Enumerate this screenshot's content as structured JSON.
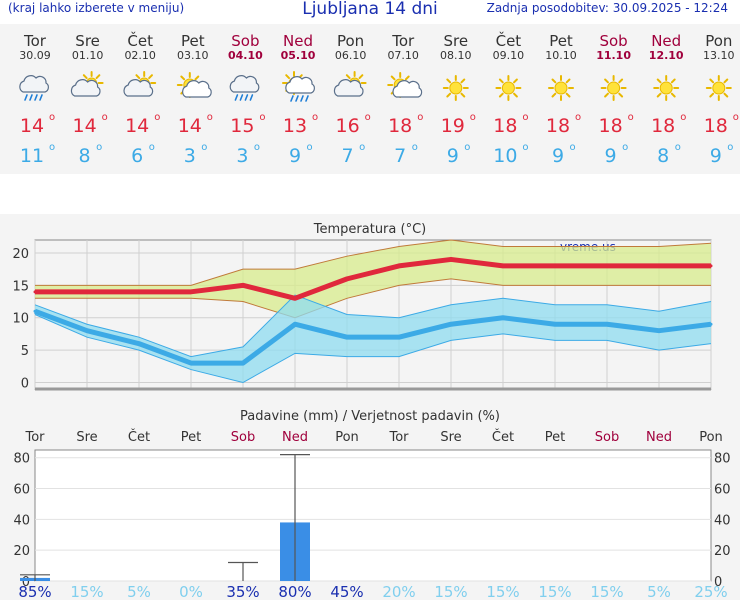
{
  "header": {
    "menu_hint": "(kraj lahko izberete v meniju)",
    "title": "Ljubljana 14 dni",
    "updated": "Zadnja posodobitev: 30.09.2025 - 12:24"
  },
  "colors": {
    "weekday": "#333333",
    "weekend": "#a0003c",
    "tmax": "#e0283c",
    "tmin": "#3caae6",
    "prob_high": "#1a2fb0",
    "prob_low": "#80cfee",
    "precip_bar": "#3a8ee6"
  },
  "days": [
    {
      "name": "Tor",
      "date": "30.09",
      "weekend": false,
      "icon": "cloud-rain-icon",
      "tmax": "14",
      "tmin": "11"
    },
    {
      "name": "Sre",
      "date": "01.10",
      "weekend": false,
      "icon": "partly-cloudy-icon",
      "tmax": "14",
      "tmin": "8"
    },
    {
      "name": "Čet",
      "date": "02.10",
      "weekend": false,
      "icon": "partly-cloudy-icon",
      "tmax": "14",
      "tmin": "6"
    },
    {
      "name": "Pet",
      "date": "03.10",
      "weekend": false,
      "icon": "mostly-sunny-icon",
      "tmax": "14",
      "tmin": "3"
    },
    {
      "name": "Sob",
      "date": "04.10",
      "weekend": true,
      "icon": "cloud-rain-icon",
      "tmax": "15",
      "tmin": "3"
    },
    {
      "name": "Ned",
      "date": "05.10",
      "weekend": true,
      "icon": "sun-shower-icon",
      "tmax": "13",
      "tmin": "9"
    },
    {
      "name": "Pon",
      "date": "06.10",
      "weekend": false,
      "icon": "partly-cloudy-icon",
      "tmax": "16",
      "tmin": "7"
    },
    {
      "name": "Tor",
      "date": "07.10",
      "weekend": false,
      "icon": "mostly-sunny-icon",
      "tmax": "18",
      "tmin": "7"
    },
    {
      "name": "Sre",
      "date": "08.10",
      "weekend": false,
      "icon": "sun-icon",
      "tmax": "19",
      "tmin": "9"
    },
    {
      "name": "Čet",
      "date": "09.10",
      "weekend": false,
      "icon": "sun-icon",
      "tmax": "18",
      "tmin": "10"
    },
    {
      "name": "Pet",
      "date": "10.10",
      "weekend": false,
      "icon": "sun-icon",
      "tmax": "18",
      "tmin": "9"
    },
    {
      "name": "Sob",
      "date": "11.10",
      "weekend": true,
      "icon": "sun-icon",
      "tmax": "18",
      "tmin": "9"
    },
    {
      "name": "Ned",
      "date": "12.10",
      "weekend": true,
      "icon": "sun-icon",
      "tmax": "18",
      "tmin": "8"
    },
    {
      "name": "Pon",
      "date": "13.10",
      "weekend": false,
      "icon": "sun-icon",
      "tmax": "18",
      "tmin": "9"
    }
  ],
  "degree_symbol": "o",
  "chart_data": [
    {
      "type": "line",
      "title": "Temperatura (°C)",
      "watermark": "vreme.us",
      "categories": [
        "Tor",
        "Sre",
        "Čet",
        "Pet",
        "Sob",
        "Ned",
        "Pon",
        "Tor",
        "Sre",
        "Čet",
        "Pet",
        "Sob",
        "Ned",
        "Pon"
      ],
      "ylim": [
        -1,
        22
      ],
      "yticks": [
        0,
        5,
        10,
        15,
        20
      ],
      "grid": true,
      "series": [
        {
          "values": [
            14,
            14,
            14,
            14,
            15,
            13,
            16,
            18,
            19,
            18,
            18,
            18,
            18,
            18
          ],
          "band_high": [
            15,
            15,
            15,
            15,
            17.5,
            17.5,
            19.5,
            21,
            22,
            21,
            21,
            21,
            21,
            21.5
          ],
          "band_low": [
            13,
            13,
            13,
            13,
            12.5,
            10,
            13,
            15,
            16,
            15,
            15,
            15,
            15,
            15
          ]
        },
        {
          "values": [
            11,
            8,
            6,
            3,
            3,
            9,
            7,
            7,
            9,
            10,
            9,
            9,
            8,
            9
          ],
          "band_high": [
            12,
            9,
            7,
            4,
            5.5,
            13.5,
            10.5,
            10,
            12,
            13,
            12,
            12,
            11,
            12.5
          ],
          "band_low": [
            10.5,
            7,
            5,
            2,
            0,
            4.5,
            4,
            4,
            6.5,
            7.5,
            6.5,
            6.5,
            5,
            6
          ]
        }
      ]
    },
    {
      "type": "bar",
      "title": "Padavine (mm) / Verjetnost padavin (%)",
      "categories": [
        "Tor",
        "Sre",
        "Čet",
        "Pet",
        "Sob",
        "Ned",
        "Pon",
        "Tor",
        "Sre",
        "Čet",
        "Pet",
        "Sob",
        "Ned",
        "Pon"
      ],
      "ylim": [
        0,
        85
      ],
      "yticks": [
        0,
        20,
        40,
        60,
        80
      ],
      "precip_mm": [
        2,
        0,
        0,
        0,
        0,
        38,
        0,
        0,
        0,
        0,
        0,
        0,
        0,
        0
      ],
      "precip_range": [
        [
          0,
          4
        ],
        null,
        null,
        null,
        [
          0,
          12
        ],
        [
          0,
          82
        ],
        null,
        null,
        null,
        null,
        null,
        null,
        null,
        null
      ],
      "probability_labels": [
        "85%",
        "15%",
        "5%",
        "0%",
        "35%",
        "80%",
        "45%",
        "20%",
        "15%",
        "15%",
        "15%",
        "15%",
        "5%",
        "25%"
      ],
      "probability_values": [
        85,
        15,
        5,
        0,
        35,
        80,
        45,
        20,
        15,
        15,
        15,
        15,
        5,
        25
      ]
    }
  ]
}
